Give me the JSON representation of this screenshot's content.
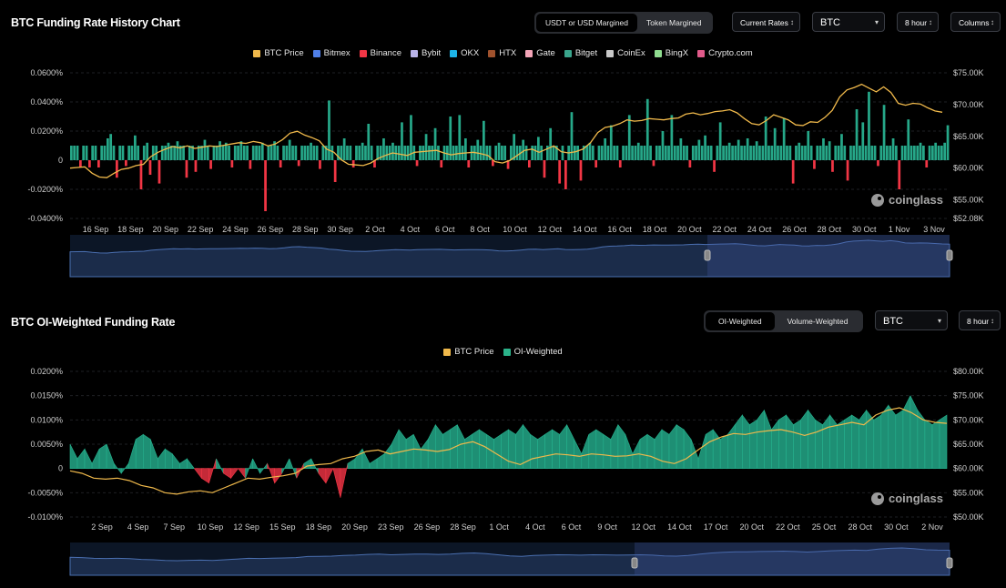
{
  "panel1": {
    "title": "BTC Funding Rate History Chart",
    "margin_toggle": [
      {
        "label": "USDT or USD Margined",
        "active": true
      },
      {
        "label": "Token Margined",
        "active": false
      }
    ],
    "rate_select": "Current Rates",
    "coin_select": "BTC",
    "interval_select": "8 hour",
    "chart_type_select": "Columns",
    "watermark": "coinglass"
  },
  "panel2": {
    "title": "BTC OI-Weighted Funding Rate",
    "weight_toggle": [
      {
        "label": "OI-Weighted",
        "active": true
      },
      {
        "label": "Volume-Weighted",
        "active": false
      }
    ],
    "coin_select": "BTC",
    "interval_select": "8 hour",
    "watermark": "coinglass"
  },
  "chart_data": [
    {
      "type": "bar",
      "title": "BTC Funding Rate History Chart",
      "legend": [
        {
          "name": "BTC Price",
          "color": "#f0b94b"
        },
        {
          "name": "Bitmex",
          "color": "#4f7fe8"
        },
        {
          "name": "Binance",
          "color": "#f23645"
        },
        {
          "name": "Bybit",
          "color": "#b9b3e8"
        },
        {
          "name": "OKX",
          "color": "#1db4e8"
        },
        {
          "name": "HTX",
          "color": "#a0522d"
        },
        {
          "name": "Gate",
          "color": "#f4a5b8"
        },
        {
          "name": "Bitget",
          "color": "#3aa58c"
        },
        {
          "name": "CoinEx",
          "color": "#c8c8c8"
        },
        {
          "name": "BingX",
          "color": "#8fdc8f"
        },
        {
          "name": "Crypto.com",
          "color": "#e05a8a"
        }
      ],
      "y_left": {
        "ticks": [
          "0.0600%",
          "0.0400%",
          "0.0200%",
          "0",
          "-0.0200%",
          "-0.0400%"
        ],
        "range": [
          -0.04,
          0.06
        ]
      },
      "y_right": {
        "ticks": [
          "$75.00K",
          "$70.00K",
          "$65.00K",
          "$60.00K",
          "$55.00K",
          "$52.08K"
        ],
        "range": [
          52.08,
          75
        ]
      },
      "x_ticks": [
        "16 Sep",
        "18 Sep",
        "20 Sep",
        "22 Sep",
        "24 Sep",
        "26 Sep",
        "28 Sep",
        "30 Sep",
        "2 Oct",
        "4 Oct",
        "6 Oct",
        "8 Oct",
        "10 Oct",
        "12 Oct",
        "14 Oct",
        "16 Oct",
        "18 Oct",
        "20 Oct",
        "22 Oct",
        "24 Oct",
        "26 Oct",
        "28 Oct",
        "30 Oct",
        "1 Nov",
        "3 Nov"
      ],
      "funding_rate_pct": [
        0.01,
        0.01,
        0.01,
        -0.005,
        0.01,
        0.01,
        -0.005,
        0.01,
        0.01,
        -0.005,
        0.01,
        0.01,
        0.015,
        0.018,
        0.01,
        -0.012,
        0.01,
        0.01,
        -0.004,
        0.01,
        0.01,
        0.017,
        0.01,
        -0.02,
        0.01,
        0.012,
        -0.01,
        0.01,
        0.01,
        -0.016,
        0.01,
        0.01,
        0.012,
        0.01,
        0.01,
        0.013,
        0.01,
        0.01,
        -0.012,
        0.01,
        0.01,
        -0.008,
        0.01,
        0.01,
        0.014,
        0.01,
        -0.006,
        0.01,
        0.01,
        0.013,
        0.01,
        0.012,
        0.01,
        -0.005,
        0.01,
        0.01,
        0.013,
        0.01,
        0.01,
        -0.006,
        0.01,
        0.01,
        0.01,
        0.012,
        -0.035,
        0.01,
        0.01,
        0.013,
        0.01,
        -0.005,
        0.01,
        0.01,
        0.014,
        0.01,
        0.01,
        -0.004,
        0.01,
        0.01,
        0.01,
        0.012,
        0.01,
        0.01,
        -0.006,
        0.01,
        0.01,
        0.041,
        0.01,
        -0.015,
        0.01,
        0.01,
        0.015,
        0.01,
        0.01,
        -0.005,
        0.01,
        0.01,
        0.012,
        0.01,
        0.025,
        0.01,
        -0.005,
        0.01,
        0.01,
        0.015,
        0.01,
        0.01,
        0.012,
        0.01,
        0.01,
        0.026,
        0.01,
        0.01,
        0.031,
        0.01,
        -0.004,
        0.01,
        0.01,
        0.018,
        0.01,
        0.01,
        0.022,
        0.01,
        -0.005,
        0.01,
        0.01,
        0.03,
        0.01,
        0.01,
        0.031,
        0.01,
        0.015,
        -0.005,
        0.01,
        0.01,
        0.014,
        0.01,
        0.027,
        0.01,
        0.01,
        -0.004,
        0.01,
        0.012,
        0.01,
        0.01,
        -0.006,
        0.01,
        0.018,
        0.01,
        0.01,
        0.014,
        0.01,
        -0.005,
        0.01,
        0.01,
        0.016,
        0.01,
        -0.012,
        0.01,
        0.022,
        0.01,
        0.01,
        -0.016,
        0.01,
        -0.02,
        0.01,
        0.033,
        0.01,
        0.01,
        -0.014,
        0.01,
        0.01,
        0.012,
        0.01,
        -0.005,
        0.01,
        0.01,
        0.015,
        0.01,
        0.024,
        0.01,
        0.01,
        -0.005,
        0.01,
        0.01,
        0.031,
        0.01,
        0.01,
        0.012,
        0.01,
        0.01,
        0.042,
        0.01,
        -0.004,
        0.01,
        0.01,
        0.02,
        0.01,
        0.01,
        0.031,
        0.01,
        0.01,
        0.015,
        0.01,
        0.01,
        -0.005,
        0.01,
        0.01,
        0.014,
        0.01,
        0.017,
        0.01,
        0.01,
        -0.008,
        0.01,
        0.026,
        0.01,
        0.01,
        0.012,
        0.01,
        0.01,
        0.014,
        0.01,
        0.01,
        0.015,
        0.01,
        0.01,
        0.013,
        0.01,
        0.01,
        0.03,
        0.01,
        0.01,
        0.022,
        0.01,
        0.01,
        0.029,
        0.01,
        0.01,
        -0.016,
        0.01,
        0.012,
        0.01,
        0.01,
        0.02,
        0.01,
        -0.006,
        0.01,
        0.01,
        0.015,
        0.01,
        0.013,
        -0.008,
        0.01,
        0.01,
        0.018,
        0.01,
        -0.014,
        0.01,
        0.01,
        0.035,
        0.01,
        0.026,
        0.01,
        0.047,
        0.01,
        0.01,
        -0.004,
        0.01,
        0.038,
        0.01,
        0.01,
        0.015,
        0.01,
        -0.02,
        0.01,
        0.01,
        0.028,
        0.01,
        0.01,
        0.01,
        0.012,
        0.01,
        -0.005,
        0.01,
        0.01,
        0.012,
        0.01,
        0.01,
        0.012,
        0.024
      ],
      "btc_price_k": [
        60.0,
        60.1,
        60.2,
        59.2,
        58.6,
        58.5,
        59.2,
        59.8,
        60.0,
        60.4,
        60.6,
        61.8,
        62.5,
        63.0,
        63.4,
        63.2,
        63.5,
        63.1,
        63.3,
        63.5,
        63.4,
        63.6,
        63.8,
        64.0,
        63.9,
        64.2,
        64.0,
        63.5,
        63.8,
        64.5,
        65.5,
        65.8,
        65.2,
        64.8,
        64.3,
        63.0,
        62.5,
        61.3,
        60.6,
        60.5,
        60.4,
        60.8,
        61.5,
        62.0,
        62.4,
        62.2,
        62.0,
        62.5,
        62.6,
        62.7,
        62.8,
        62.4,
        62.1,
        62.3,
        62.4,
        62.5,
        62.3,
        62.0,
        61.0,
        60.8,
        61.2,
        62.0,
        62.8,
        63.0,
        62.5,
        63.0,
        63.5,
        62.6,
        62.4,
        62.6,
        63.0,
        64.0,
        65.6,
        66.4,
        66.6,
        67.0,
        67.6,
        67.4,
        67.5,
        67.8,
        67.7,
        67.6,
        67.8,
        67.9,
        68.5,
        68.7,
        68.4,
        68.6,
        68.9,
        69.0,
        69.2,
        68.7,
        67.8,
        67.0,
        66.8,
        67.5,
        68.4,
        68.0,
        67.6,
        66.8,
        66.7,
        67.3,
        67.2,
        68.0,
        69.1,
        71.2,
        72.3,
        72.7,
        73.2,
        72.6,
        72.0,
        72.8,
        71.9,
        70.2,
        69.9,
        70.2,
        70.1,
        69.5,
        69.0,
        68.8
      ]
    },
    {
      "type": "area",
      "title": "BTC OI-Weighted Funding Rate",
      "legend": [
        {
          "name": "BTC Price",
          "color": "#f0b94b"
        },
        {
          "name": "OI-Weighted",
          "color": "#2bb38a"
        }
      ],
      "y_left": {
        "ticks": [
          "0.0200%",
          "0.0150%",
          "0.0100%",
          "0.0050%",
          "0",
          "-0.0050%",
          "-0.0100%"
        ],
        "range": [
          -0.01,
          0.02
        ]
      },
      "y_right": {
        "ticks": [
          "$80.00K",
          "$75.00K",
          "$70.00K",
          "$65.00K",
          "$60.00K",
          "$55.00K",
          "$50.00K"
        ],
        "range": [
          50,
          80
        ]
      },
      "x_ticks": [
        "2 Sep",
        "4 Sep",
        "7 Sep",
        "10 Sep",
        "12 Sep",
        "15 Sep",
        "18 Sep",
        "20 Sep",
        "23 Sep",
        "26 Sep",
        "28 Sep",
        "1 Oct",
        "4 Oct",
        "6 Oct",
        "9 Oct",
        "12 Oct",
        "14 Oct",
        "17 Oct",
        "20 Oct",
        "22 Oct",
        "25 Oct",
        "28 Oct",
        "30 Oct",
        "2 Nov"
      ],
      "oi_weighted_pct": [
        0.005,
        0.002,
        0.004,
        0.001,
        0.004,
        0.005,
        0.001,
        -0.001,
        0.001,
        0.006,
        0.007,
        0.006,
        0.002,
        0.004,
        0.003,
        0.001,
        0.002,
        0.0,
        -0.002,
        -0.003,
        0.002,
        -0.001,
        -0.002,
        0.0,
        -0.002,
        0.002,
        -0.001,
        0.001,
        -0.003,
        -0.001,
        0.002,
        -0.002,
        0.001,
        0.002,
        -0.001,
        -0.003,
        0.0,
        -0.006,
        0.001,
        0.002,
        0.004,
        0.001,
        0.002,
        0.003,
        0.005,
        0.008,
        0.006,
        0.007,
        0.004,
        0.006,
        0.009,
        0.007,
        0.008,
        0.009,
        0.006,
        0.007,
        0.008,
        0.007,
        0.006,
        0.007,
        0.008,
        0.007,
        0.009,
        0.007,
        0.006,
        0.007,
        0.008,
        0.007,
        0.009,
        0.006,
        0.003,
        0.007,
        0.008,
        0.007,
        0.006,
        0.009,
        0.007,
        0.003,
        0.006,
        0.007,
        0.006,
        0.008,
        0.007,
        0.009,
        0.008,
        0.006,
        0.002,
        0.007,
        0.008,
        0.006,
        0.007,
        0.009,
        0.011,
        0.009,
        0.01,
        0.012,
        0.008,
        0.01,
        0.011,
        0.009,
        0.01,
        0.012,
        0.01,
        0.009,
        0.011,
        0.009,
        0.01,
        0.011,
        0.01,
        0.012,
        0.01,
        0.011,
        0.013,
        0.011,
        0.012,
        0.015,
        0.012,
        0.01,
        0.009,
        0.01,
        0.011
      ],
      "btc_price_k": [
        59.5,
        59.0,
        58.0,
        57.8,
        58.0,
        57.5,
        56.5,
        56.0,
        55.0,
        54.7,
        55.2,
        55.4,
        55.0,
        56.0,
        57.0,
        58.0,
        57.8,
        58.2,
        58.5,
        59.0,
        60.5,
        60.8,
        61.0,
        62.0,
        62.5,
        63.5,
        63.8,
        63.0,
        63.5,
        64.0,
        63.8,
        63.5,
        63.9,
        65.0,
        65.5,
        64.5,
        63.0,
        61.5,
        60.8,
        62.0,
        62.5,
        63.0,
        62.8,
        62.5,
        63.0,
        62.8,
        62.5,
        62.6,
        63.0,
        62.5,
        61.5,
        61.0,
        62.0,
        63.8,
        65.5,
        66.5,
        67.2,
        67.0,
        67.5,
        67.8,
        68.0,
        67.5,
        66.8,
        67.5,
        68.5,
        69.0,
        69.5,
        69.0,
        71.0,
        72.0,
        72.5,
        71.5,
        70.0,
        69.5,
        69.3
      ]
    }
  ]
}
